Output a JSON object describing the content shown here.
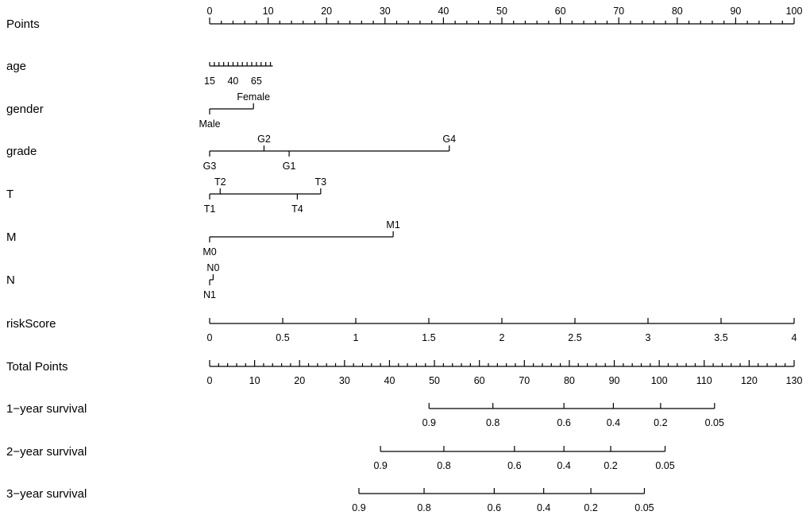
{
  "chart_data": {
    "type": "nomogram",
    "title": "",
    "points_axis": {
      "label": "Points",
      "range": [
        0,
        100
      ],
      "major": [
        0,
        10,
        20,
        30,
        40,
        50,
        60,
        70,
        80,
        90,
        100
      ],
      "minor_step": 2
    },
    "variables": [
      {
        "label": "age",
        "ticks": [
          {
            "text": "15",
            "points": 0.0
          },
          {
            "text": "40",
            "points": 4.0
          },
          {
            "text": "65",
            "points": 8.0
          }
        ],
        "axis_range_points": [
          0,
          10.8
        ],
        "minor_step_points": 0.8
      },
      {
        "label": "gender",
        "ticks": [
          {
            "text": "Male",
            "points": 0.0,
            "side": "below"
          },
          {
            "text": "Female",
            "points": 7.5,
            "side": "above"
          }
        ]
      },
      {
        "label": "grade",
        "ticks": [
          {
            "text": "G3",
            "points": 0.0,
            "side": "below"
          },
          {
            "text": "G2",
            "points": 9.3,
            "side": "above"
          },
          {
            "text": "G1",
            "points": 13.6,
            "side": "below"
          },
          {
            "text": "G4",
            "points": 41.0,
            "side": "above"
          }
        ]
      },
      {
        "label": "T",
        "ticks": [
          {
            "text": "T1",
            "points": 0.0,
            "side": "below"
          },
          {
            "text": "T2",
            "points": 1.8,
            "side": "above"
          },
          {
            "text": "T4",
            "points": 15.0,
            "side": "below"
          },
          {
            "text": "T3",
            "points": 19.0,
            "side": "above"
          }
        ]
      },
      {
        "label": "M",
        "ticks": [
          {
            "text": "M0",
            "points": 0.0,
            "side": "below"
          },
          {
            "text": "M1",
            "points": 31.4,
            "side": "above"
          }
        ]
      },
      {
        "label": "N",
        "ticks": [
          {
            "text": "N1",
            "points": 0.0,
            "side": "below"
          },
          {
            "text": "N0",
            "points": 0.6,
            "side": "above"
          }
        ]
      },
      {
        "label": "riskScore",
        "ticks": [
          {
            "text": "0",
            "points": 0.0
          },
          {
            "text": "0.5",
            "points": 12.5
          },
          {
            "text": "1",
            "points": 25.0
          },
          {
            "text": "1.5",
            "points": 37.5
          },
          {
            "text": "2",
            "points": 50.0
          },
          {
            "text": "2.5",
            "points": 62.5
          },
          {
            "text": "3",
            "points": 75.0
          },
          {
            "text": "3.5",
            "points": 87.5
          },
          {
            "text": "4",
            "points": 100.0
          }
        ]
      }
    ],
    "total_points_axis": {
      "label": "Total Points",
      "range": [
        0,
        130
      ],
      "major": [
        0,
        10,
        20,
        30,
        40,
        50,
        60,
        70,
        80,
        90,
        100,
        110,
        120,
        130
      ],
      "minor_step": 2
    },
    "survival": [
      {
        "label": "1−year survival",
        "ticks": [
          {
            "text": "0.9",
            "total": 48.8
          },
          {
            "text": "0.8",
            "total": 63.0
          },
          {
            "text": "0.6",
            "total": 78.8
          },
          {
            "text": "0.4",
            "total": 89.8
          },
          {
            "text": "0.2",
            "total": 100.3
          },
          {
            "text": "0.05",
            "total": 112.3
          }
        ]
      },
      {
        "label": "2−year survival",
        "ticks": [
          {
            "text": "0.9",
            "total": 38.0
          },
          {
            "text": "0.8",
            "total": 52.1
          },
          {
            "text": "0.6",
            "total": 67.8
          },
          {
            "text": "0.4",
            "total": 78.8
          },
          {
            "text": "0.2",
            "total": 89.2
          },
          {
            "text": "0.05",
            "total": 101.3
          }
        ]
      },
      {
        "label": "3−year survival",
        "ticks": [
          {
            "text": "0.9",
            "total": 33.2
          },
          {
            "text": "0.8",
            "total": 47.7
          },
          {
            "text": "0.6",
            "total": 63.3
          },
          {
            "text": "0.4",
            "total": 74.3
          },
          {
            "text": "0.2",
            "total": 84.8
          },
          {
            "text": "0.05",
            "total": 96.7
          }
        ]
      }
    ],
    "grid": false,
    "legend": "none"
  }
}
